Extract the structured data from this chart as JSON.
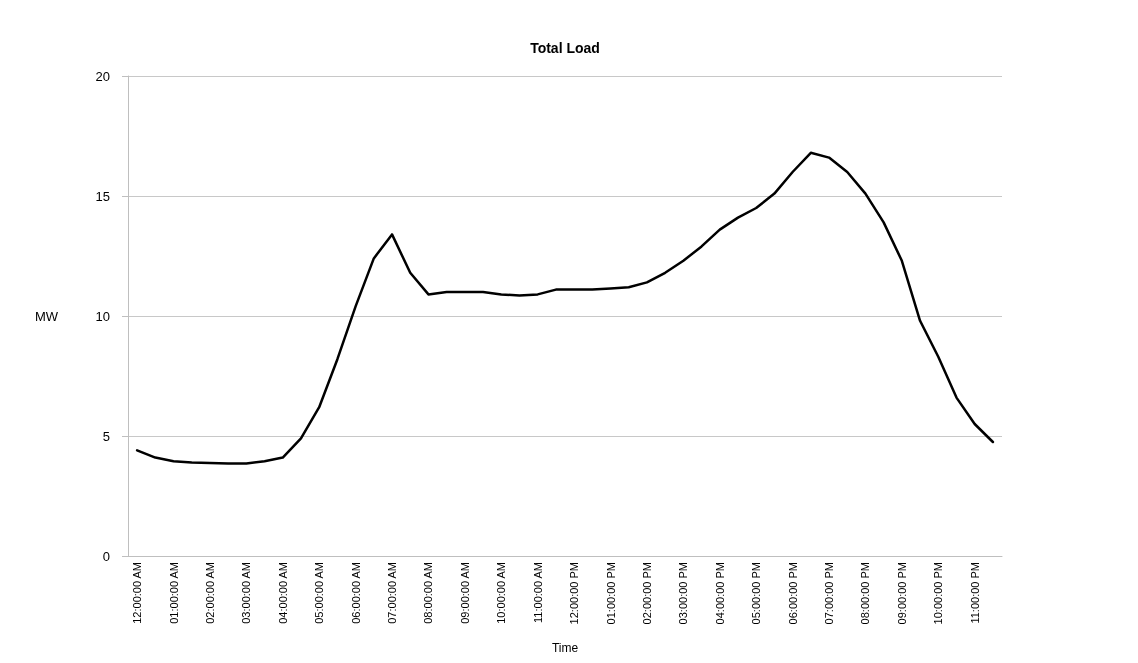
{
  "chart_data": {
    "type": "line",
    "title": "Total Load",
    "xlabel": "Time",
    "ylabel": "MW",
    "categories": [
      "12:00:00 AM",
      null,
      "01:00:00 AM",
      null,
      "02:00:00 AM",
      null,
      "03:00:00 AM",
      null,
      "04:00:00 AM",
      null,
      "05:00:00 AM",
      null,
      "06:00:00 AM",
      null,
      "07:00:00 AM",
      null,
      "08:00:00 AM",
      null,
      "09:00:00 AM",
      null,
      "10:00:00 AM",
      null,
      "11:00:00 AM",
      null,
      "12:00:00 PM",
      null,
      "01:00:00 PM",
      null,
      "02:00:00 PM",
      null,
      "03:00:00 PM",
      null,
      "04:00:00 PM",
      null,
      "05:00:00 PM",
      null,
      "06:00:00 PM",
      null,
      "07:00:00 PM",
      null,
      "08:00:00 PM",
      null,
      "09:00:00 PM",
      null,
      "10:00:00 PM",
      null,
      "11:00:00 PM",
      null
    ],
    "series": [
      {
        "color": "#000000",
        "values": [
          4.4,
          4.1,
          3.95,
          3.9,
          3.87,
          3.85,
          3.85,
          3.95,
          4.1,
          4.9,
          6.2,
          8.2,
          10.4,
          12.4,
          13.4,
          11.8,
          10.9,
          11.0,
          11.0,
          11.0,
          10.9,
          10.85,
          10.9,
          11.1,
          11.1,
          11.1,
          11.15,
          11.2,
          11.4,
          11.8,
          12.3,
          12.9,
          13.6,
          14.1,
          14.5,
          15.1,
          16.0,
          16.8,
          16.6,
          16.0,
          15.1,
          13.9,
          12.3,
          9.8,
          8.3,
          6.6,
          5.5,
          4.75
        ]
      }
    ],
    "ylim": [
      0,
      20
    ],
    "yticks": [
      0,
      5,
      10,
      15,
      20
    ],
    "grid": "y",
    "marker": "none",
    "line_style": "solid"
  }
}
